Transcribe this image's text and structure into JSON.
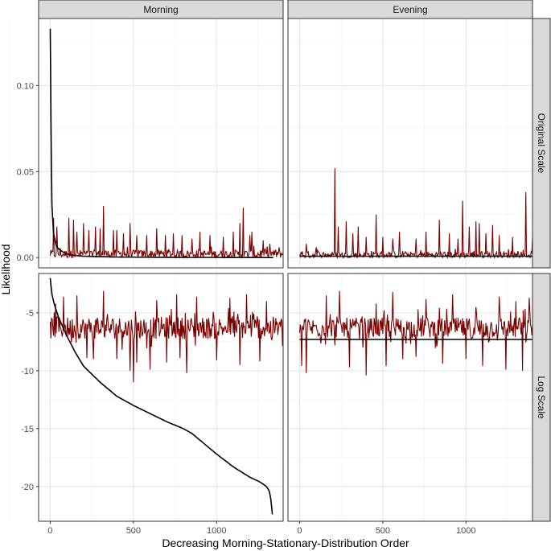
{
  "chart_data": {
    "type": "line",
    "facet_columns": [
      "Morning",
      "Evening"
    ],
    "facet_rows": [
      "Original Scale",
      "Log Scale"
    ],
    "xlabel": "Decreasing Morning-Stationary-Distribution Order",
    "ylabel": "Likelihood",
    "xlim": [
      -70,
      1400
    ],
    "x_ticks": [
      "0",
      "500",
      "1000"
    ],
    "rows": [
      {
        "name": "Original Scale",
        "ylim": [
          -0.006,
          0.139
        ],
        "y_ticks": [
          "0.00",
          "0.05",
          "0.10"
        ]
      },
      {
        "name": "Log Scale",
        "ylim": [
          -23,
          -1.6
        ],
        "y_ticks": [
          "-5",
          "-10",
          "-15",
          "-20"
        ]
      }
    ],
    "series": [
      {
        "color": "#000000",
        "style": "smooth"
      },
      {
        "color": "#7a0000",
        "style": "noisy"
      }
    ],
    "panels": {
      "Morning|Original Scale": {
        "smooth": [
          [
            0,
            0.133
          ],
          [
            3,
            0.1
          ],
          [
            6,
            0.06
          ],
          [
            10,
            0.03
          ],
          [
            20,
            0.014
          ],
          [
            35,
            0.007
          ],
          [
            50,
            0.005
          ],
          [
            80,
            0.003
          ],
          [
            120,
            0.0015
          ],
          [
            200,
            0.0008
          ],
          [
            400,
            0.0003
          ],
          [
            800,
            0.0001
          ],
          [
            1340,
            0.0
          ]
        ],
        "noise": {
          "base": 0.002,
          "jitter": 0.003,
          "spikes": [
            [
              20,
              0.023
            ],
            [
              40,
              0.018
            ],
            [
              110,
              0.023
            ],
            [
              140,
              0.022
            ],
            [
              160,
              0.015
            ],
            [
              200,
              0.02
            ],
            [
              230,
              0.016
            ],
            [
              270,
              0.018
            ],
            [
              300,
              0.017
            ],
            [
              320,
              0.03
            ],
            [
              380,
              0.016
            ],
            [
              400,
              0.016
            ],
            [
              440,
              0.014
            ],
            [
              480,
              0.02
            ],
            [
              520,
              0.013
            ],
            [
              580,
              0.013
            ],
            [
              640,
              0.017
            ],
            [
              690,
              0.013
            ],
            [
              740,
              0.014
            ],
            [
              790,
              0.013
            ],
            [
              850,
              0.011
            ],
            [
              900,
              0.015
            ],
            [
              960,
              0.013
            ],
            [
              1040,
              0.012
            ],
            [
              1100,
              0.015
            ],
            [
              1140,
              0.02
            ],
            [
              1160,
              0.029
            ],
            [
              1200,
              0.013
            ],
            [
              1210,
              0.015
            ],
            [
              1280,
              0.01
            ],
            [
              1320,
              0.008
            ]
          ]
        }
      },
      "Evening|Original Scale": {
        "smooth": [
          [
            0,
            0.0008
          ],
          [
            1400,
            0.0008
          ]
        ],
        "noise": {
          "base": 0.0015,
          "jitter": 0.0025,
          "spikes": [
            [
              40,
              0.008
            ],
            [
              100,
              0.006
            ],
            [
              210,
              0.052
            ],
            [
              230,
              0.018
            ],
            [
              280,
              0.021
            ],
            [
              320,
              0.014
            ],
            [
              350,
              0.018
            ],
            [
              400,
              0.012
            ],
            [
              460,
              0.025
            ],
            [
              500,
              0.012
            ],
            [
              560,
              0.011
            ],
            [
              600,
              0.015
            ],
            [
              700,
              0.011
            ],
            [
              760,
              0.015
            ],
            [
              840,
              0.022
            ],
            [
              900,
              0.014
            ],
            [
              950,
              0.011
            ],
            [
              980,
              0.033
            ],
            [
              1020,
              0.018
            ],
            [
              1060,
              0.021
            ],
            [
              1080,
              0.02
            ],
            [
              1120,
              0.014
            ],
            [
              1160,
              0.019
            ],
            [
              1200,
              0.013
            ],
            [
              1280,
              0.012
            ],
            [
              1360,
              0.038
            ],
            [
              1400,
              0.012
            ]
          ]
        }
      },
      "Morning|Log Scale": {
        "smooth": [
          [
            0,
            -2.0
          ],
          [
            10,
            -3.4
          ],
          [
            25,
            -4.3
          ],
          [
            50,
            -5.4
          ],
          [
            75,
            -6.2
          ],
          [
            100,
            -7.0
          ],
          [
            150,
            -8.4
          ],
          [
            200,
            -9.6
          ],
          [
            300,
            -11.0
          ],
          [
            400,
            -12.2
          ],
          [
            500,
            -13.0
          ],
          [
            600,
            -13.7
          ],
          [
            700,
            -14.4
          ],
          [
            800,
            -15.0
          ],
          [
            850,
            -15.4
          ],
          [
            900,
            -16.0
          ],
          [
            1000,
            -17.2
          ],
          [
            1100,
            -18.3
          ],
          [
            1200,
            -19.2
          ],
          [
            1260,
            -19.6
          ],
          [
            1300,
            -20.0
          ],
          [
            1320,
            -20.5
          ],
          [
            1330,
            -21.5
          ],
          [
            1335,
            -22.4
          ]
        ],
        "noise": {
          "base": -6.3,
          "jitter": 1.2,
          "spikes": [
            [
              30,
              -4.2
            ],
            [
              80,
              -3.6
            ],
            [
              160,
              -3.5
            ],
            [
              220,
              -8.9
            ],
            [
              260,
              -9.0
            ],
            [
              320,
              -3.1
            ],
            [
              400,
              -9.0
            ],
            [
              480,
              -10.0
            ],
            [
              500,
              -11.0
            ],
            [
              520,
              -9.3
            ],
            [
              600,
              -9.9
            ],
            [
              640,
              -3.9
            ],
            [
              700,
              -9.3
            ],
            [
              760,
              -3.4
            ],
            [
              780,
              -8.9
            ],
            [
              820,
              -10.2
            ],
            [
              880,
              -3.6
            ],
            [
              1000,
              -9.1
            ],
            [
              1080,
              -3.7
            ],
            [
              1140,
              -9.5
            ],
            [
              1180,
              -3.4
            ],
            [
              1260,
              -9.2
            ],
            [
              1300,
              -4.0
            ]
          ]
        }
      },
      "Evening|Log Scale": {
        "smooth": [
          [
            0,
            -7.3
          ],
          [
            1400,
            -7.3
          ]
        ],
        "noise": {
          "base": -6.3,
          "jitter": 1.1,
          "spikes": [
            [
              10,
              -9.6
            ],
            [
              40,
              -10.2
            ],
            [
              160,
              -3.5
            ],
            [
              240,
              -3.1
            ],
            [
              300,
              -9.7
            ],
            [
              380,
              -8.0
            ],
            [
              400,
              -10.4
            ],
            [
              460,
              -4.2
            ],
            [
              520,
              -9.6
            ],
            [
              560,
              -3.2
            ],
            [
              620,
              -9.0
            ],
            [
              700,
              -8.8
            ],
            [
              760,
              -3.8
            ],
            [
              860,
              -9.4
            ],
            [
              920,
              -3.4
            ],
            [
              1000,
              -9.0
            ],
            [
              1060,
              -4.5
            ],
            [
              1100,
              -9.6
            ],
            [
              1200,
              -3.6
            ],
            [
              1240,
              -9.9
            ],
            [
              1300,
              -4.0
            ],
            [
              1340,
              -10.0
            ],
            [
              1380,
              -3.7
            ]
          ]
        }
      }
    }
  }
}
